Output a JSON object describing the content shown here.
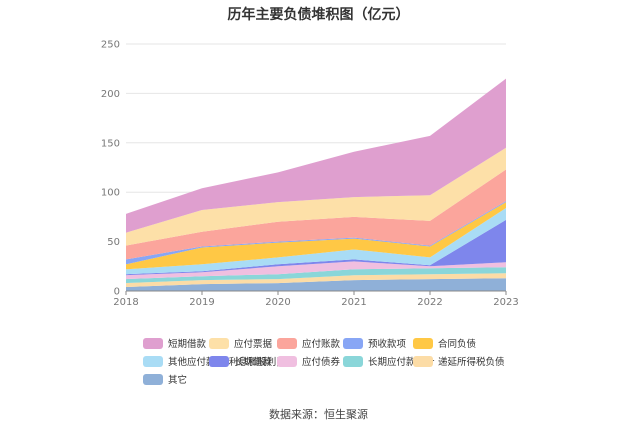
{
  "chart_data": {
    "type": "area",
    "stacked": true,
    "title": "历年主要负债堆积图（亿元）",
    "source": "数据来源：恒生聚源",
    "x": [
      "2018",
      "2019",
      "2020",
      "2021",
      "2022",
      "2023"
    ],
    "ylim": [
      0,
      250
    ],
    "yticks": [
      0,
      50,
      100,
      150,
      200,
      250
    ],
    "grid": true,
    "legend_position": "bottom",
    "series": [
      {
        "name": "其它",
        "color": "#8fb0d8",
        "values": [
          4,
          7,
          8,
          11,
          12,
          13
        ]
      },
      {
        "name": "递延所得税负债",
        "color": "#fcdca6",
        "values": [
          4,
          4,
          4,
          5,
          5,
          5
        ]
      },
      {
        "name": "长期应付款合计",
        "color": "#8ad6d9",
        "values": [
          4,
          4,
          5,
          6,
          6,
          6
        ]
      },
      {
        "name": "应付债券",
        "color": "#f0bfe0",
        "values": [
          4,
          4,
          8,
          8,
          2,
          5
        ]
      },
      {
        "name": "长期借款",
        "color": "#7e86ec",
        "values": [
          1,
          1,
          2,
          2,
          1,
          43
        ]
      },
      {
        "name": "其他应付款(含利息和股利)",
        "color": "#a9dcf5",
        "values": [
          5,
          7,
          7,
          10,
          8,
          12
        ]
      },
      {
        "name": "合同负债",
        "color": "#ffc845",
        "values": [
          5,
          17,
          15,
          11,
          11,
          6
        ]
      },
      {
        "name": "预收款项",
        "color": "#88a6f5",
        "values": [
          5,
          1,
          1,
          1,
          1,
          1
        ]
      },
      {
        "name": "应付账款",
        "color": "#fba59c",
        "values": [
          14,
          15,
          20,
          21,
          25,
          32
        ]
      },
      {
        "name": "应付票据",
        "color": "#fde0a8",
        "values": [
          13,
          22,
          20,
          20,
          26,
          22
        ]
      },
      {
        "name": "短期借款",
        "color": "#df9fcf",
        "values": [
          19,
          22,
          30,
          46,
          60,
          70
        ]
      }
    ],
    "legend_order": [
      "短期借款",
      "应付票据",
      "应付账款",
      "预收款项",
      "合同负债",
      "其他应付款(含利息和股利)",
      "长期借款",
      "应付债券",
      "长期应付款合计",
      "递延所得税负债",
      "其它"
    ]
  }
}
